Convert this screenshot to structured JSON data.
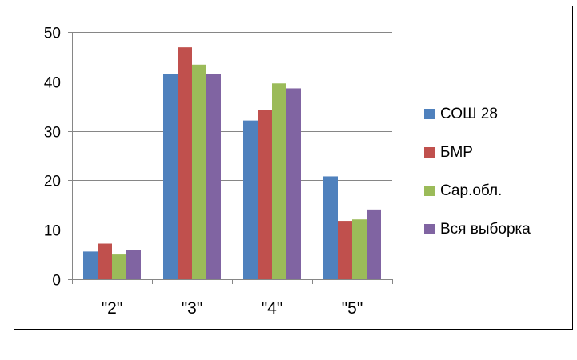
{
  "chart_data": {
    "type": "bar",
    "categories": [
      "\"2\"",
      "\"3\"",
      "\"4\"",
      "\"5\""
    ],
    "series": [
      {
        "name": "СОШ 28",
        "color": "#4F81BD",
        "values": [
          5.6,
          41.5,
          32.1,
          20.8
        ]
      },
      {
        "name": "БМР",
        "color": "#C0504D",
        "values": [
          7.2,
          46.9,
          34.2,
          11.8
        ]
      },
      {
        "name": "Сар.обл.",
        "color": "#9BBB59",
        "values": [
          5.0,
          43.4,
          39.6,
          12.1
        ]
      },
      {
        "name": "Вся выборка",
        "color": "#8064A2",
        "values": [
          5.9,
          41.5,
          38.6,
          14.1
        ]
      }
    ],
    "ylim": [
      0,
      50
    ],
    "yticks": [
      "0",
      "10",
      "20",
      "30",
      "40",
      "50"
    ],
    "grid": true,
    "legend": "right",
    "title": "",
    "xlabel": "",
    "ylabel": ""
  }
}
